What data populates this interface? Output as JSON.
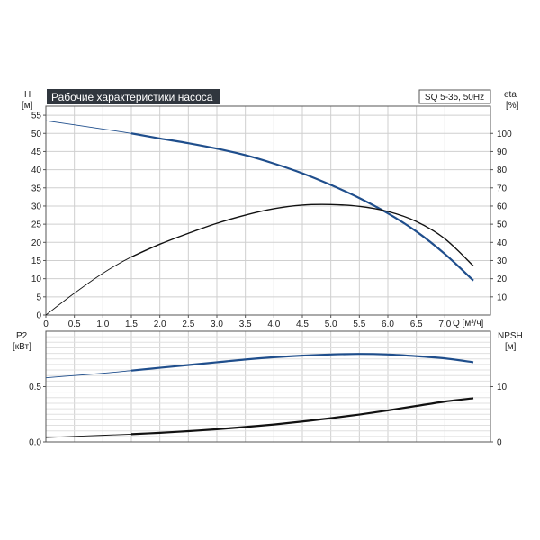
{
  "chart_data": [
    {
      "type": "line",
      "title": "Рабочие характеристики насоса",
      "model_label": "SQ 5-35, 50Hz",
      "x_axis": {
        "label": "Q [м³/ч]",
        "range": [
          0,
          7.8
        ],
        "ticks": [
          0,
          0.5,
          1.0,
          1.5,
          2.0,
          2.5,
          3.0,
          3.5,
          4.0,
          4.5,
          5.0,
          5.5,
          6.0,
          6.5,
          7.0
        ],
        "tick_labels": [
          "0",
          "0.5",
          "1.0",
          "1.5",
          "2.0",
          "2.5",
          "3.0",
          "3.5",
          "4.0",
          "4.5",
          "5.0",
          "5.5",
          "6.0",
          "6.5",
          "7.0"
        ]
      },
      "y_left": {
        "label_line1": "H",
        "label_line2": "[м]",
        "range": [
          0,
          57.5
        ],
        "ticks": [
          0,
          5,
          10,
          15,
          20,
          25,
          30,
          35,
          40,
          45,
          50,
          55
        ]
      },
      "y_right": {
        "label_line1": "eta",
        "label_line2": "[%]",
        "range": [
          0,
          115
        ],
        "ticks": [
          10,
          20,
          30,
          40,
          50,
          60,
          70,
          80,
          90,
          100
        ]
      },
      "grid": true,
      "series": [
        {
          "axis": "left",
          "color": "#1f4e8c",
          "thin_until_x": 1.5,
          "x": [
            0,
            1.0,
            1.5,
            2.0,
            2.5,
            3.0,
            3.5,
            4.0,
            4.5,
            5.0,
            5.5,
            6.0,
            6.5,
            7.0,
            7.5
          ],
          "y": [
            53.5,
            51.2,
            50.0,
            48.6,
            47.3,
            45.8,
            44.0,
            41.7,
            39.0,
            35.8,
            32.2,
            28.0,
            23.0,
            16.8,
            9.5
          ]
        },
        {
          "axis": "right",
          "color": "#111111",
          "thin_until_x": 1.5,
          "x": [
            0,
            0.5,
            1.0,
            1.5,
            2.0,
            2.5,
            3.0,
            3.5,
            4.0,
            4.5,
            5.0,
            5.5,
            6.0,
            6.5,
            7.0,
            7.5
          ],
          "y": [
            0,
            12,
            23,
            32,
            39,
            45,
            50.5,
            55,
            58.5,
            60.5,
            60.8,
            59.8,
            57.0,
            51.5,
            42.0,
            27.0
          ]
        }
      ]
    },
    {
      "type": "line",
      "x_axis": {
        "range": [
          0,
          7.8
        ]
      },
      "y_left": {
        "label_line1": "P2",
        "label_line2": "[кВт]",
        "range": [
          0,
          1.0
        ],
        "ticks": [
          0,
          0.5
        ],
        "tick_labels": [
          "0.0",
          "0.5"
        ]
      },
      "y_right": {
        "label_line1": "NPSH",
        "label_line2": "[м]",
        "range": [
          0,
          20
        ],
        "ticks": [
          0,
          10
        ],
        "tick_labels": [
          "0",
          "10"
        ]
      },
      "grid": true,
      "series": [
        {
          "axis": "left",
          "color": "#1f4e8c",
          "thin_until_x": 1.5,
          "x": [
            0,
            0.5,
            1.0,
            1.5,
            2.0,
            2.5,
            3.0,
            3.5,
            4.0,
            4.5,
            5.0,
            5.5,
            6.0,
            6.5,
            7.0,
            7.5
          ],
          "y": [
            0.58,
            0.6,
            0.62,
            0.645,
            0.67,
            0.695,
            0.72,
            0.745,
            0.765,
            0.78,
            0.79,
            0.795,
            0.79,
            0.775,
            0.755,
            0.72
          ]
        },
        {
          "axis": "right",
          "color": "#111111",
          "thin_until_x": 1.5,
          "x": [
            0,
            0.5,
            1.0,
            1.5,
            2.0,
            2.5,
            3.0,
            3.5,
            4.0,
            4.5,
            5.0,
            5.5,
            6.0,
            6.5,
            7.0,
            7.5
          ],
          "y": [
            0.8,
            1.0,
            1.2,
            1.4,
            1.65,
            1.95,
            2.3,
            2.7,
            3.15,
            3.7,
            4.3,
            4.95,
            5.7,
            6.5,
            7.3,
            7.9
          ]
        }
      ]
    }
  ]
}
